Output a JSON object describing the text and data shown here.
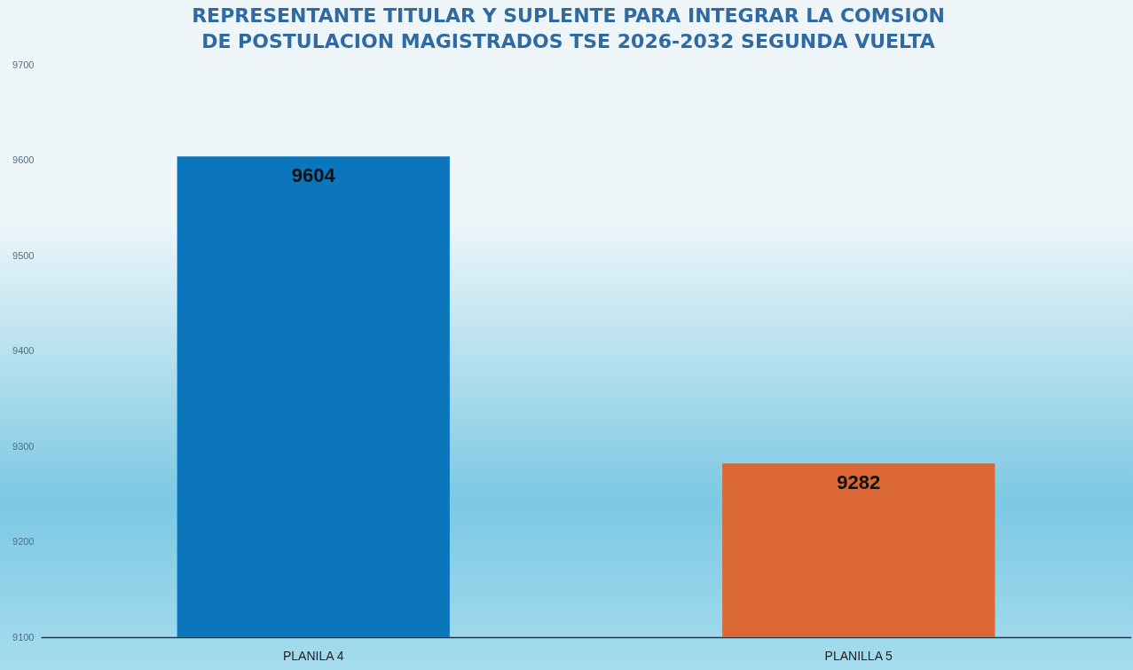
{
  "chart_data": {
    "type": "bar",
    "title": "REPRESENTANTE TITULAR Y SUPLENTE PARA INTEGRAR LA COMSION DE POSTULACION MAGISTRADOS TSE 2026-2032 SEGUNDA VUELTA",
    "categories": [
      "PLANILA 4",
      "PLANILLA 5"
    ],
    "values": [
      9604,
      9282
    ],
    "colors": [
      "#0b76bb",
      "#db6834"
    ],
    "ylim": [
      9100,
      9700
    ],
    "yticks": [
      9100,
      9200,
      9300,
      9400,
      9500,
      9600,
      9700
    ],
    "data_labels": true
  }
}
